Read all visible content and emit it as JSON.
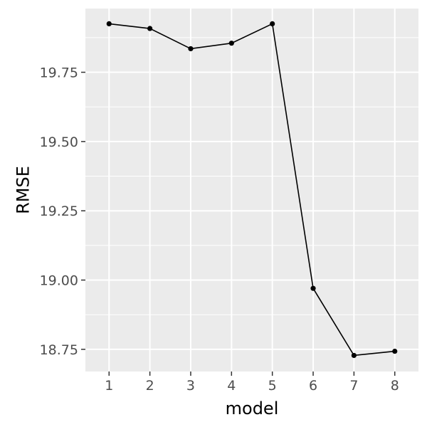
{
  "chart_data": {
    "type": "line",
    "title": "",
    "xlabel": "model",
    "ylabel": "RMSE",
    "x": [
      1,
      2,
      3,
      4,
      5,
      6,
      7,
      8
    ],
    "series": [
      {
        "values": [
          19.925,
          19.908,
          19.835,
          19.855,
          19.925,
          18.97,
          18.728,
          18.743
        ]
      }
    ],
    "xlim": [
      0.42,
      8.58
    ],
    "ylim": [
      18.67,
      19.98
    ],
    "x_ticks": [
      1,
      2,
      3,
      4,
      5,
      6,
      7,
      8
    ],
    "x_tick_labels": [
      "1",
      "2",
      "3",
      "4",
      "5",
      "6",
      "7",
      "8"
    ],
    "y_ticks": [
      18.75,
      19.0,
      19.25,
      19.5,
      19.75
    ],
    "y_tick_labels": [
      "18.75",
      "19.00",
      "19.25",
      "19.50",
      "19.75"
    ],
    "grid": true,
    "legend": "none",
    "colors": {
      "panel_background": "#ebebeb",
      "grid_line": "#ffffff",
      "line": "#000000",
      "point": "#000000",
      "tick_mark": "#333333"
    }
  }
}
